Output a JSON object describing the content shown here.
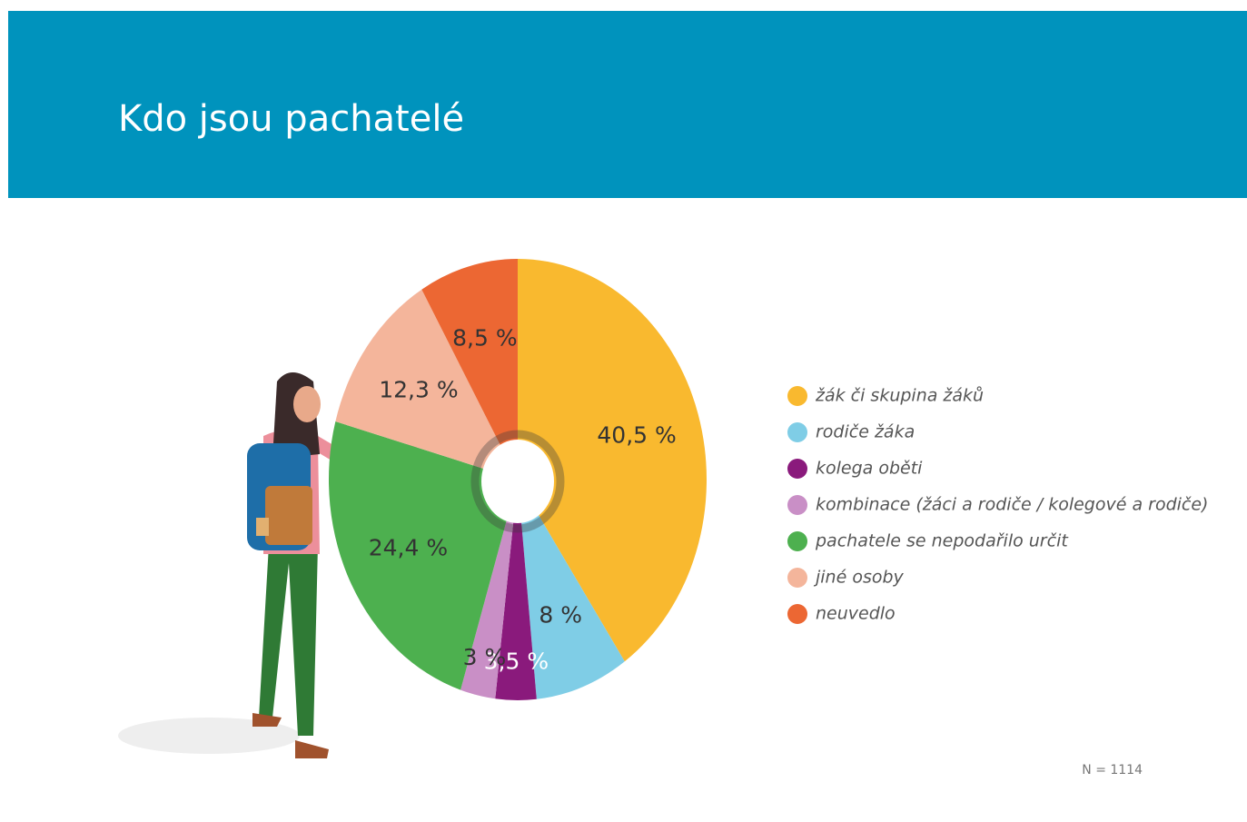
{
  "chart_data": {
    "type": "pie",
    "title": "Kdo jsou pachatelé",
    "categories": [
      "žák či skupina žáků",
      "rodiče žáka",
      "kolega oběti",
      "kombinace (žáci a rodiče / kolegové a rodiče)",
      "pachatele se nepodařilo určit",
      "jiné osoby",
      "neuvedlo"
    ],
    "values": [
      40.5,
      8,
      3.5,
      3,
      24.4,
      12.3,
      8.5
    ],
    "value_labels": [
      "40,5 %",
      "8 %",
      "3,5 %",
      "3 %",
      "24,4 %",
      "12,3 %",
      "8,5 %"
    ],
    "colors": [
      "#f9b92f",
      "#7fcde6",
      "#8a1a7c",
      "#c98fc6",
      "#4db04f",
      "#f4b59b",
      "#ec6733"
    ],
    "note": "N = 1114"
  }
}
